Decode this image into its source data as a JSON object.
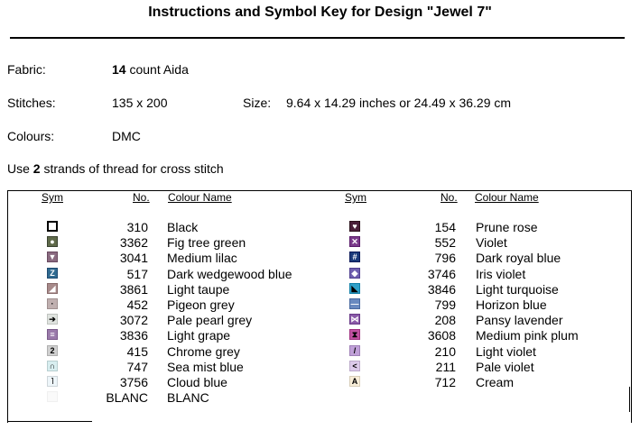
{
  "title": "Instructions and Symbol Key for Design \"Jewel 7\"",
  "fabric": {
    "label": "Fabric:",
    "count": "14",
    "rest": "count Aida"
  },
  "stitches": {
    "label": "Stitches:",
    "value": "135 x 200"
  },
  "size": {
    "label": "Size:",
    "value": "9.64 x 14.29 inches or 24.49 x 36.29 cm"
  },
  "colours": {
    "label": "Colours:",
    "value": "DMC"
  },
  "strands": {
    "pre": "Use",
    "count": "2",
    "post": "strands of thread for cross stitch"
  },
  "headers": {
    "sym": "Sym",
    "no": "No.",
    "name": "Colour Name"
  },
  "left_entries": [
    {
      "no": "310",
      "name": "Black",
      "bg": "#ffffff",
      "fg": "#000000",
      "glyph": "",
      "border": "#000000"
    },
    {
      "no": "3362",
      "name": "Fig tree green",
      "bg": "#5f6a4a",
      "fg": "#ffffff",
      "glyph": "●",
      "border": "#3a4230"
    },
    {
      "no": "3041",
      "name": "Medium lilac",
      "bg": "#8a6a80",
      "fg": "#ffffff",
      "glyph": "▼",
      "border": "#6a4a60"
    },
    {
      "no": "517",
      "name": "Dark wedgewood blue",
      "bg": "#2f6a90",
      "fg": "#ffffff",
      "glyph": "Z",
      "border": "#1f4a70"
    },
    {
      "no": "3861",
      "name": "Light taupe",
      "bg": "#a78a8a",
      "fg": "#ffffff",
      "glyph": "◢",
      "border": "#876a6a"
    },
    {
      "no": "452",
      "name": "Pigeon grey",
      "bg": "#c0b0b0",
      "fg": "#000000",
      "glyph": "·",
      "border": "#a09090"
    },
    {
      "no": "3072",
      "name": "Pale pearl grey",
      "bg": "#e0e4e0",
      "fg": "#000000",
      "glyph": "➔",
      "border": "#c0c4c0"
    },
    {
      "no": "3836",
      "name": "Light grape",
      "bg": "#9a7aaa",
      "fg": "#ffffff",
      "glyph": "≡",
      "border": "#7a5a8a"
    },
    {
      "no": "415",
      "name": "Chrome grey",
      "bg": "#d0d0d0",
      "fg": "#000000",
      "glyph": "2",
      "border": "#b0b0b0"
    },
    {
      "no": "747",
      "name": "Sea mist blue",
      "bg": "#d8eef0",
      "fg": "#000000",
      "glyph": "∩",
      "border": "#b8ced0"
    },
    {
      "no": "3756",
      "name": "Cloud blue",
      "bg": "#eef6fa",
      "fg": "#000000",
      "glyph": "˥",
      "border": "#ced6da"
    },
    {
      "no": "BLANC",
      "name": "BLANC",
      "bg": "#fafafa",
      "fg": "#000000",
      "glyph": "",
      "border": "#f0f0f0"
    }
  ],
  "right_entries": [
    {
      "no": "154",
      "name": "Prune rose",
      "bg": "#4a1f3a",
      "fg": "#ffffff",
      "glyph": "♥",
      "border": "#2a0f1a"
    },
    {
      "no": "552",
      "name": "Violet",
      "bg": "#7a3a8a",
      "fg": "#ffffff",
      "glyph": "✕",
      "border": "#5a1a6a"
    },
    {
      "no": "796",
      "name": "Dark royal blue",
      "bg": "#1a3a7a",
      "fg": "#ffffff",
      "glyph": "#",
      "border": "#0a1a5a"
    },
    {
      "no": "3746",
      "name": "Iris violet",
      "bg": "#7060b0",
      "fg": "#ffffff",
      "glyph": "◆",
      "border": "#504090"
    },
    {
      "no": "3846",
      "name": "Light turquoise",
      "bg": "#30a0c8",
      "fg": "#000000",
      "glyph": "◣",
      "border": "#1080a8"
    },
    {
      "no": "799",
      "name": "Horizon blue",
      "bg": "#6a8ac0",
      "fg": "#ffffff",
      "glyph": "—",
      "border": "#4a6aa0"
    },
    {
      "no": "208",
      "name": "Pansy lavender",
      "bg": "#8a5aa8",
      "fg": "#ffffff",
      "glyph": "⋈",
      "border": "#6a3a88"
    },
    {
      "no": "3608",
      "name": "Medium pink plum",
      "bg": "#c050a0",
      "fg": "#000000",
      "glyph": "⧗",
      "border": "#a03080"
    },
    {
      "no": "210",
      "name": "Light violet",
      "bg": "#c0a0d8",
      "fg": "#000000",
      "glyph": "/",
      "border": "#a080b8"
    },
    {
      "no": "211",
      "name": "Pale violet",
      "bg": "#dccaea",
      "fg": "#000000",
      "glyph": "<",
      "border": "#bcaaca"
    },
    {
      "no": "712",
      "name": "Cream",
      "bg": "#f8eed8",
      "fg": "#000000",
      "glyph": "A",
      "border": "#d8ceb8"
    }
  ]
}
